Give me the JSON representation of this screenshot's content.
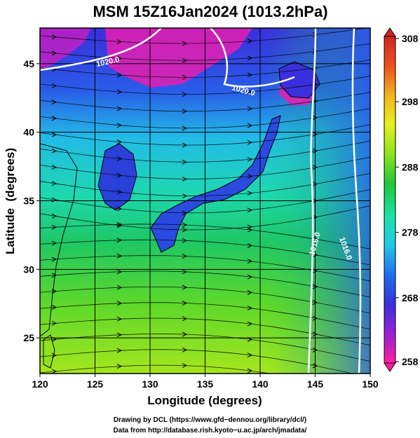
{
  "chart_data": {
    "type": "heatmap",
    "title": "MSM 15Z16Jan2024 (1013.2hPa)",
    "xlabel": "Longitude (degrees)",
    "ylabel": "Latitude  (degrees)",
    "xlim": [
      120,
      150
    ],
    "ylim": [
      22.4,
      47.6
    ],
    "x_ticks": [
      120,
      125,
      130,
      135,
      140,
      145,
      150
    ],
    "y_ticks": [
      25,
      30,
      35,
      40,
      45
    ],
    "grid": true,
    "field": "temperature (K) with streamlines",
    "colorbar": {
      "range": [
        258,
        308
      ],
      "ticks": [
        258,
        268,
        278,
        288,
        298,
        308
      ],
      "colors": [
        "#ff1fa0",
        "#9a1fd6",
        "#3a2fdc",
        "#1e6ff0",
        "#21c8e6",
        "#1de2a8",
        "#1ec83a",
        "#8fe21e",
        "#e6f01e",
        "#f0b41e",
        "#ec501e",
        "#d2241e"
      ]
    },
    "contours": [
      {
        "label": "1020.0",
        "color": "#ffffff"
      },
      {
        "label": "1020.0",
        "color": "#ffffff"
      },
      {
        "label": "1016.0",
        "color": "#ffffff"
      },
      {
        "label": "1016.0",
        "color": "#ffffff"
      }
    ],
    "annotations": [
      "1020.0",
      "1020.0",
      "1016.0",
      "1016.0"
    ]
  },
  "footer": {
    "line1": "Drawing by DCL (https://www.gfd−dennou.org/library/dcl/)",
    "line2": "Data from http://database.rish.kyoto−u.ac.jp/arch/jmadata/"
  }
}
